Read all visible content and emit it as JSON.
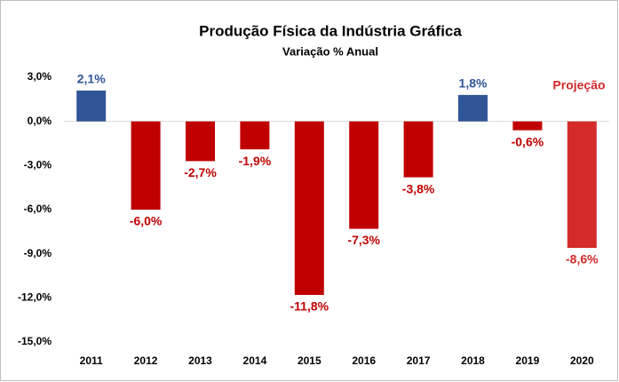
{
  "chart_data": {
    "type": "bar",
    "title": "Produção Física da Indústria Gráfica",
    "subtitle": "Variação % Anual",
    "annotation": "Projeção",
    "annotation_color": "#d42a2a",
    "categories": [
      "2011",
      "2012",
      "2013",
      "2014",
      "2015",
      "2016",
      "2017",
      "2018",
      "2019",
      "2020"
    ],
    "values": [
      2.1,
      -6.0,
      -2.7,
      -1.9,
      -11.8,
      -7.3,
      -3.8,
      1.8,
      -0.6,
      -8.6
    ],
    "value_labels": [
      "2,1%",
      "-6,0%",
      "-2,7%",
      "-1,9%",
      "-11,8%",
      "-7,3%",
      "-3,8%",
      "1,8%",
      "-0,6%",
      "-8,6%"
    ],
    "colors": [
      "#2f5597",
      "#c00000",
      "#c00000",
      "#c00000",
      "#c00000",
      "#c00000",
      "#c00000",
      "#2f5597",
      "#c00000",
      "#d42a2a"
    ],
    "ylim": [
      -15,
      3
    ],
    "yticks": [
      {
        "value": 3,
        "label": "3,0%"
      },
      {
        "value": 0,
        "label": "0,0%"
      },
      {
        "value": -3,
        "label": "-3,0%"
      },
      {
        "value": -6,
        "label": "-6,0%"
      },
      {
        "value": -9,
        "label": "-9,0%"
      },
      {
        "value": -12,
        "label": "-12,0%"
      },
      {
        "value": -15,
        "label": "-15,0%"
      }
    ],
    "grid": false
  }
}
